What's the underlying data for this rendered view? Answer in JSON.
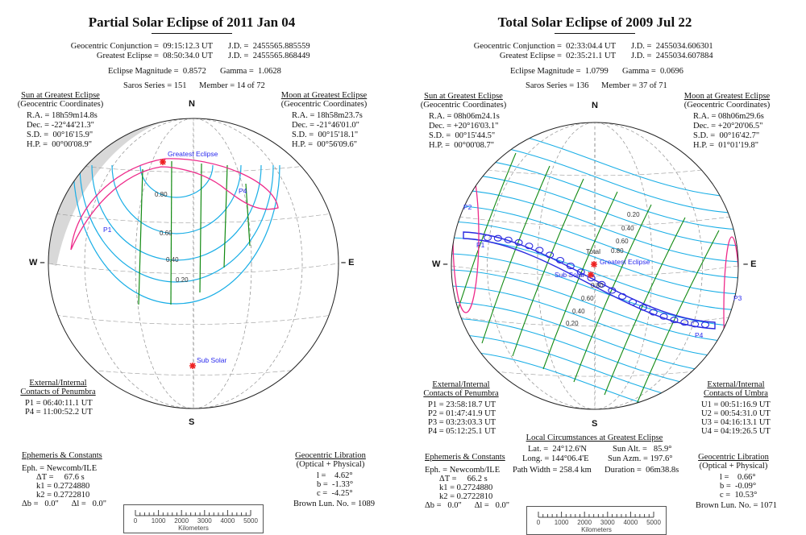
{
  "colors": {
    "penumbra_contour": "#19aee6",
    "time_line": "#128a12",
    "limit": "#ee2a8a",
    "umbra_path": "#2a2ae0",
    "marker": "#ee2222",
    "graticule": "#9a9a9a"
  },
  "partial": {
    "title": "Partial Solar Eclipse of  2011 Jan 04",
    "conj_label": "Geocentric Conjunction =  09:15:12.3 UT",
    "conj_jd": "J.D. =  2455565.885559",
    "ge_label": "Greatest Eclipse =  08:50:34.0 UT",
    "ge_jd": "J.D. =  2455565.868449",
    "magnitude": "Eclipse Magnitude =  0.8572",
    "gamma": "Gamma =  1.0628",
    "saros": "Saros Series = 151",
    "member": "Member = 14 of 72",
    "sun": {
      "heading": "Sun at Greatest Eclipse",
      "sub": "(Geocentric Coordinates)",
      "lines": [
        "R.A. = 18h59m14.8s",
        "Dec. = -22°44'21.3\"",
        "S.D. =  00°16'15.9\"",
        "H.P. =  00°00'08.9\""
      ]
    },
    "moon": {
      "heading": "Moon at Greatest Eclipse",
      "sub": "(Geocentric Coordinates)",
      "lines": [
        "R.A. = 18h58m23.7s",
        "Dec. = -21°46'01.0\"",
        "S.D. =  00°15'18.1\"",
        "H.P. =  00°56'09.6\""
      ]
    },
    "compass": {
      "n": "N",
      "s": "S",
      "w": "W –",
      "e": "– E"
    },
    "map": {
      "greatest": "Greatest Eclipse",
      "sub_solar": "Sub Solar",
      "p1": "P1",
      "p4": "P4",
      "contours": [
        "0.80",
        "0.60",
        "0.40",
        "0.20"
      ]
    },
    "contacts": {
      "h1": "External/Internal",
      "h2": "Contacts of Penumbra",
      "lines": [
        "P1 = 06:40:11.1 UT",
        "P4 = 11:00:52.2 UT"
      ]
    },
    "ephemeris": {
      "heading": "Ephemeris & Constants",
      "lines": [
        "Eph. = Newcomb/ILE",
        "ΔT =     67.6 s",
        "k1 = 0.2724880",
        "k2 = 0.2722810",
        "Δb =   0.0\"      Δl =   0.0\""
      ]
    },
    "libration": {
      "heading": "Geocentric Libration",
      "sub": "(Optical + Physical)",
      "lines": [
        "l =    4.62°",
        "b =  -1.33°",
        "c =  -4.25°"
      ],
      "brown": "Brown Lun. No. = 1089"
    },
    "scale": {
      "ticks": [
        "0",
        "1000",
        "2000",
        "3000",
        "4000",
        "5000"
      ],
      "unit": "Kilometers"
    }
  },
  "total": {
    "title": "Total Solar Eclipse of  2009 Jul 22",
    "conj_label": "Geocentric Conjunction =  02:33:04.4 UT",
    "conj_jd": "J.D. =  2455034.606301",
    "ge_label": "Greatest Eclipse =  02:35:21.1 UT",
    "ge_jd": "J.D. =  2455034.607884",
    "magnitude": "Eclipse Magnitude =  1.0799",
    "gamma": "Gamma =  0.0696",
    "saros": "Saros Series = 136",
    "member": "Member = 37 of 71",
    "sun": {
      "heading": "Sun at Greatest Eclipse",
      "sub": "(Geocentric Coordinates)",
      "lines": [
        "R.A. = 08h06m24.1s",
        "Dec. = +20°16'03.1\"",
        "S.D. =  00°15'44.5\"",
        "H.P. =  00°00'08.7\""
      ]
    },
    "moon": {
      "heading": "Moon at Greatest Eclipse",
      "sub": "(Geocentric Coordinates)",
      "lines": [
        "R.A. = 08h06m29.6s",
        "Dec. = +20°20'06.5\"",
        "S.D. =  00°16'42.7\"",
        "H.P. =  01°01'19.8\""
      ]
    },
    "compass": {
      "n": "N",
      "s": "S",
      "w": "W –",
      "e": "– E"
    },
    "map": {
      "total": "Total",
      "greatest": "Greatest Eclipse",
      "sub_solar": "Sub Solar",
      "p1": "P1",
      "p2": "P2",
      "p3": "P3",
      "p4": "P4",
      "contours": [
        "0.20",
        "0.40",
        "0.60",
        "0.80",
        "0.80",
        "0.60",
        "0.40",
        "0.20"
      ]
    },
    "contacts": {
      "h1": "External/Internal",
      "h2": "Contacts of Penumbra",
      "lines": [
        "P1 = 23:58:18.7 UT",
        "P2 = 01:47:41.9 UT",
        "P3 = 03:23:03.3 UT",
        "P4 = 05:12:25.1 UT"
      ]
    },
    "umbra": {
      "h1": "External/Internal",
      "h2": "Contacts of Umbra",
      "lines": [
        "U1 = 00:51:16.9 UT",
        "U2 = 00:54:31.0 UT",
        "U3 = 04:16:13.1 UT",
        "U4 = 04:19:26.5 UT"
      ]
    },
    "local": {
      "heading": "Local Circumstances at Greatest Eclipse",
      "lat": "Lat. =  24°12.6'N",
      "long": "Long. = 144°06.4'E",
      "alt": "Sun Alt. =   85.9°",
      "azm": "Sun Azm. = 197.6°",
      "width": "Path Width = 258.4 km",
      "duration": "Duration =  06m38.8s"
    },
    "ephemeris": {
      "heading": "Ephemeris & Constants",
      "lines": [
        "Eph. = Newcomb/ILE",
        "ΔT =     66.2 s",
        "k1 = 0.2724880",
        "k2 = 0.2722810",
        "Δb =   0.0\"      Δl =   0.0\""
      ]
    },
    "libration": {
      "heading": "Geocentric Libration",
      "sub": "(Optical + Physical)",
      "lines": [
        "l =    0.66°",
        "b =  -0.09°",
        "c =  10.53°"
      ],
      "brown": "Brown Lun. No. = 1071"
    },
    "scale": {
      "ticks": [
        "0",
        "1000",
        "2000",
        "3000",
        "4000",
        "5000"
      ],
      "unit": "Kilometers"
    }
  }
}
